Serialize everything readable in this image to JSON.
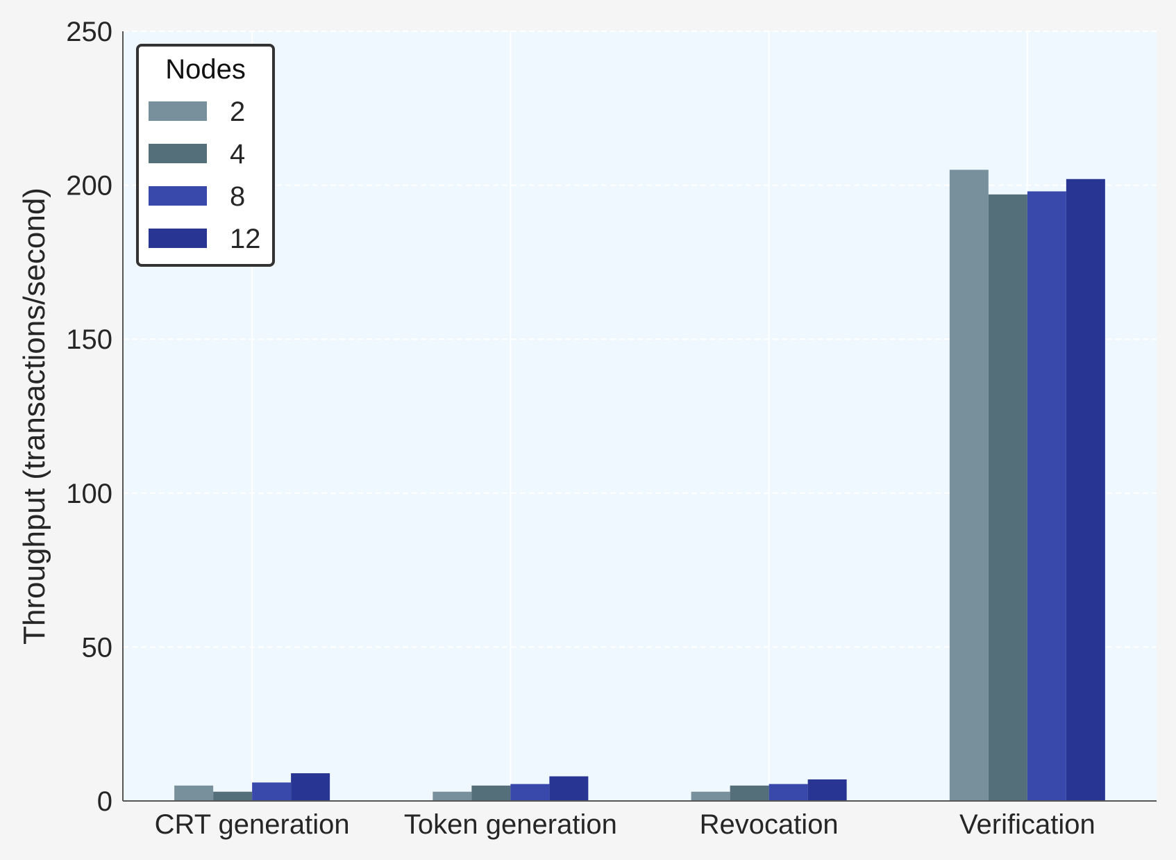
{
  "chart_data": {
    "type": "bar",
    "title": "",
    "xlabel": "",
    "ylabel": "Throughput (transactions/second)",
    "categories": [
      "CRT generation",
      "Token generation",
      "Revocation",
      "Verification"
    ],
    "series": [
      {
        "name": "2",
        "values": [
          5,
          3,
          3,
          205
        ],
        "color": "#78909c"
      },
      {
        "name": "4",
        "values": [
          3,
          5,
          5,
          197
        ],
        "color": "#546e7a"
      },
      {
        "name": "8",
        "values": [
          6,
          5.5,
          5.5,
          198
        ],
        "color": "#3949ab"
      },
      {
        "name": "12",
        "values": [
          9,
          8,
          7,
          202
        ],
        "color": "#283593"
      }
    ],
    "ylim": [
      0,
      250
    ],
    "yticks": [
      0,
      50,
      100,
      150,
      200,
      250
    ],
    "grid": true,
    "legend": {
      "title": "Nodes",
      "position": "top-left"
    },
    "colors": {
      "plot_background": "#f0f8ff",
      "figure_background": "#f5f5f5"
    }
  }
}
